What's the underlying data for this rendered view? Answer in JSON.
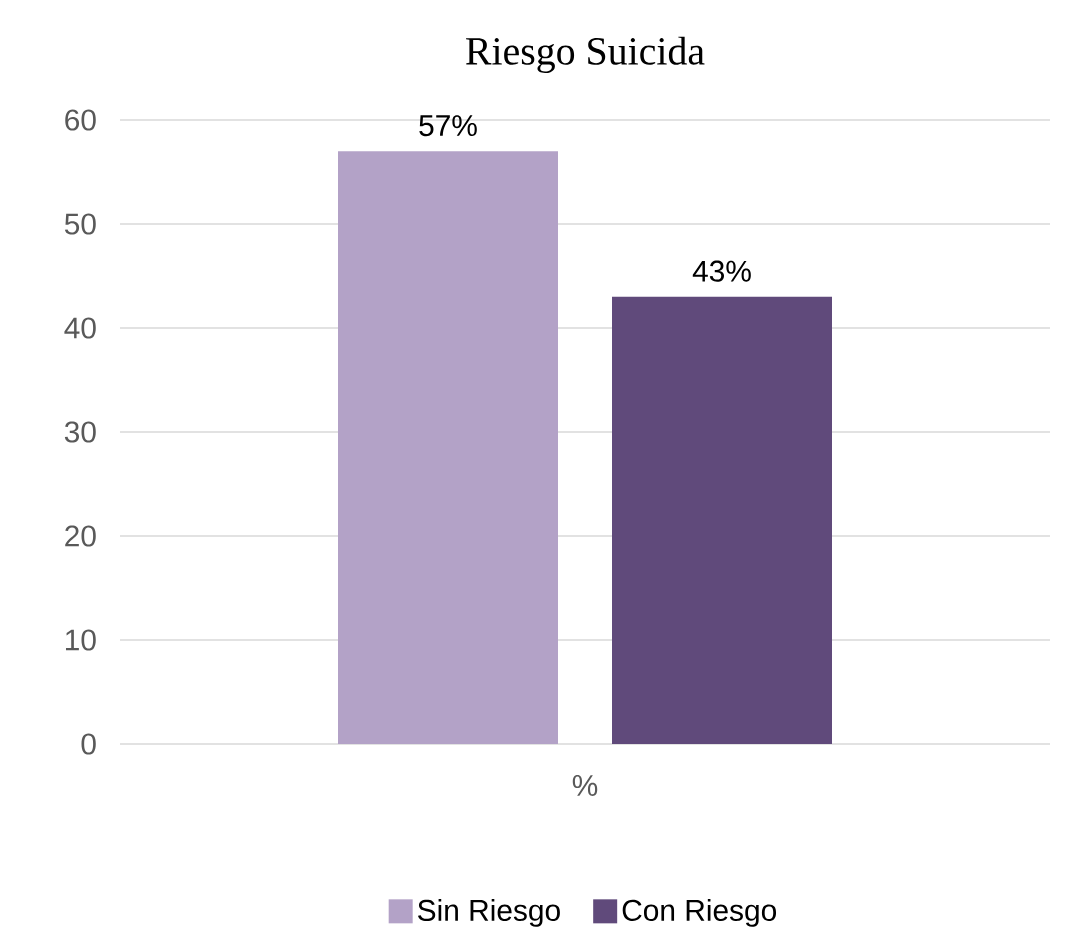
{
  "chart_data": {
    "type": "bar",
    "title": "Riesgo Suicida",
    "categories": [
      "%"
    ],
    "series": [
      {
        "name": "Sin Riesgo",
        "color": "#b3a2c7",
        "values": [
          57
        ],
        "value_labels": [
          "57%"
        ]
      },
      {
        "name": "Con Riesgo",
        "color": "#604a7b",
        "values": [
          43
        ],
        "value_labels": [
          "43%"
        ]
      }
    ],
    "ylim": [
      0,
      60
    ],
    "yticks": [
      0,
      10,
      20,
      30,
      40,
      50,
      60
    ],
    "grid": "y",
    "legend": "bottom"
  }
}
